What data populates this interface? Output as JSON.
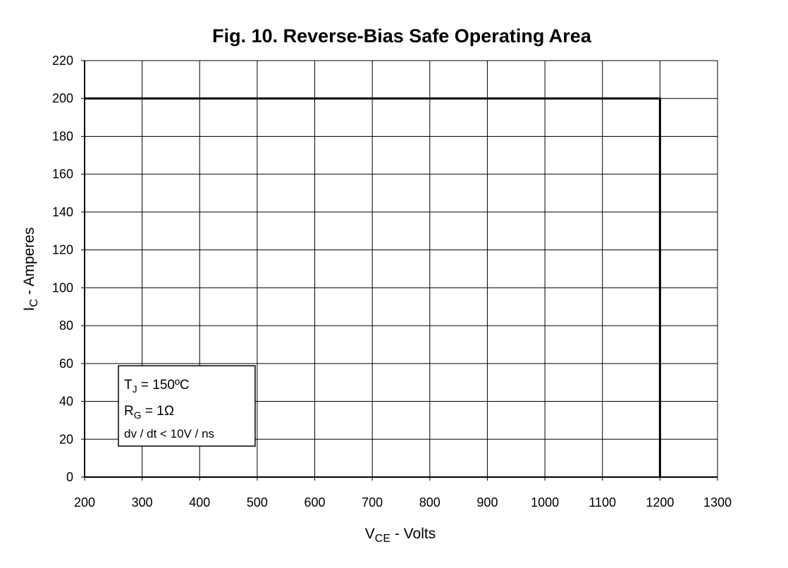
{
  "chart_data": {
    "type": "line",
    "title": "Fig. 10. Reverse-Bias Safe Operating Area",
    "xlabel": [
      "V",
      "CE",
      " - Volts"
    ],
    "ylabel": [
      "I",
      "C",
      " - Amperes"
    ],
    "annotation": [
      [
        "T",
        "J",
        " = 150ºC"
      ],
      [
        "R",
        "G",
        " = 1Ω"
      ],
      [
        "dv / dt < 10V / ns"
      ]
    ],
    "series": [
      {
        "color": "#000000",
        "x": [
          200,
          1200,
          1200
        ],
        "values": [
          200,
          200,
          0
        ]
      }
    ],
    "xlim": [
      200,
      1300
    ],
    "xticks": [
      200,
      300,
      400,
      500,
      600,
      700,
      800,
      900,
      1000,
      1100,
      1200,
      1300
    ],
    "ylim": [
      0,
      220
    ],
    "yticks": [
      0,
      20,
      40,
      60,
      80,
      100,
      120,
      140,
      160,
      180,
      200,
      220
    ],
    "grid": true
  }
}
